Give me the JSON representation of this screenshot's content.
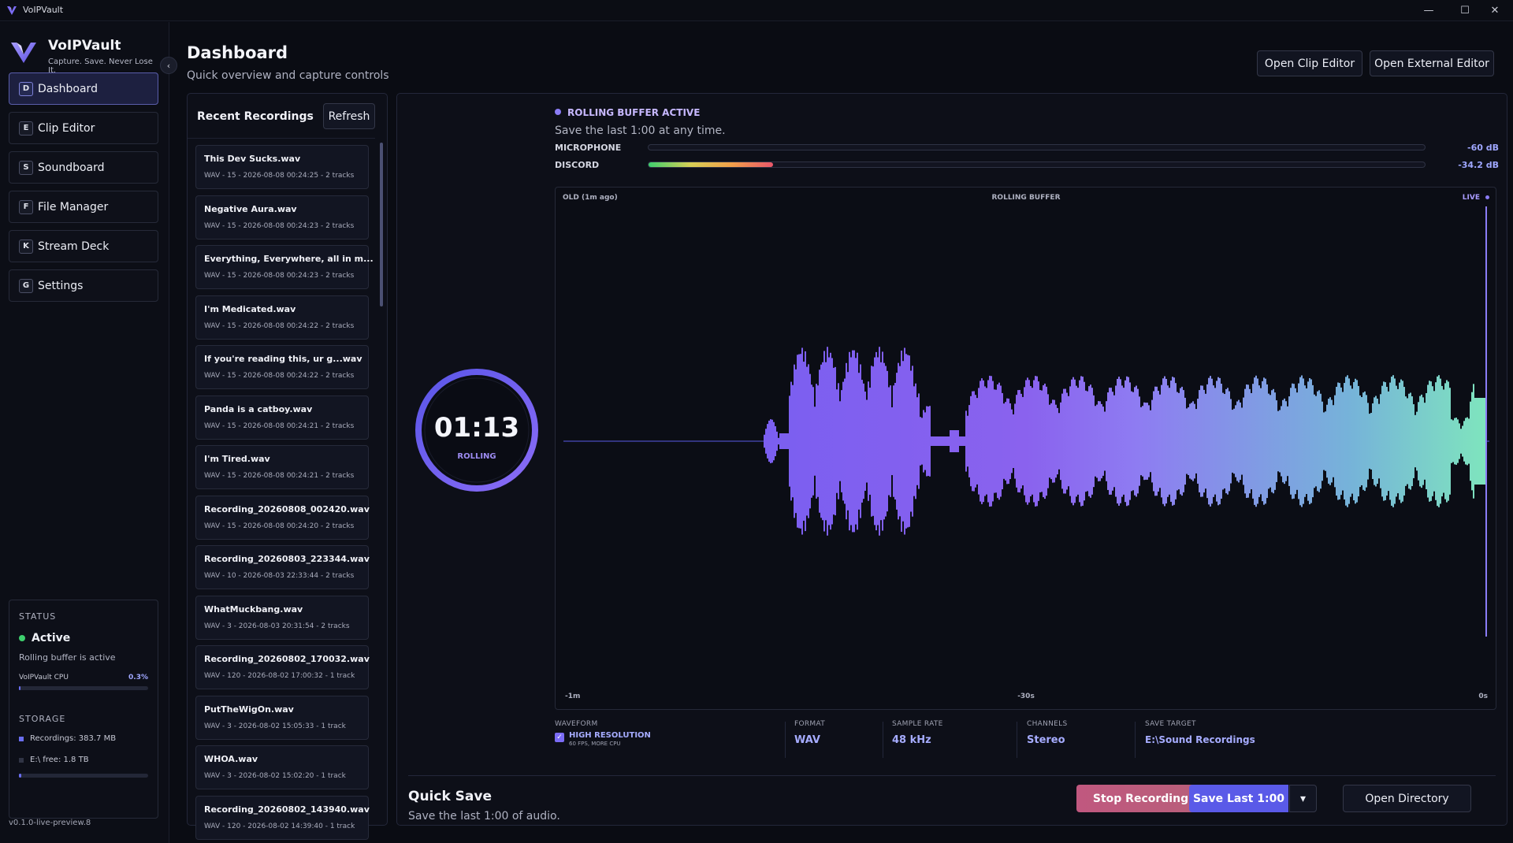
{
  "window": {
    "title": "VoIPVault",
    "minimize_glyph": "—",
    "maximize_glyph": "☐",
    "close_glyph": "✕"
  },
  "brand": {
    "name": "VoIPVault",
    "tagline": "Capture. Save. Never Lose It.",
    "logo_icon": "v-logo-icon",
    "collapse_glyph": "‹"
  },
  "nav": [
    {
      "key": "D",
      "label": "Dashboard",
      "active": true
    },
    {
      "key": "E",
      "label": "Clip Editor",
      "active": false
    },
    {
      "key": "S",
      "label": "Soundboard",
      "active": false
    },
    {
      "key": "F",
      "label": "File Manager",
      "active": false
    },
    {
      "key": "K",
      "label": "Stream Deck",
      "active": false
    },
    {
      "key": "G",
      "label": "Settings",
      "active": false
    }
  ],
  "status": {
    "heading": "STATUS",
    "state": "Active",
    "description": "Rolling buffer is active",
    "cpu_label": "VoIPVault CPU",
    "cpu_value": "0.3%",
    "cpu_fraction": 0.003,
    "storage_heading": "STORAGE",
    "recordings_label": "Recordings: 383.7 MB",
    "free_label": "E:\\ free: 1.8 TB",
    "storage_fraction": 0.02,
    "active_color": "#3ecf6e"
  },
  "version": "v0.1.0-live-preview.8",
  "header": {
    "title": "Dashboard",
    "subtitle": "Quick overview and capture controls",
    "open_clip_editor": "Open Clip Editor",
    "open_external_editor": "Open External Editor"
  },
  "recent": {
    "title": "Recent Recordings",
    "refresh_label": "Refresh",
    "items": [
      {
        "name": "This Dev Sucks.wav",
        "meta": "WAV - 15 - 2026-08-08 00:24:25 - 2 tracks"
      },
      {
        "name": "Negative Aura.wav",
        "meta": "WAV - 15 - 2026-08-08 00:24:23 - 2 tracks"
      },
      {
        "name": "Everything, Everywhere, all in m...",
        "meta": "WAV - 15 - 2026-08-08 00:24:23 - 2 tracks"
      },
      {
        "name": "I'm Medicated.wav",
        "meta": "WAV - 15 - 2026-08-08 00:24:22 - 2 tracks"
      },
      {
        "name": "If you're reading this, ur g...wav",
        "meta": "WAV - 15 - 2026-08-08 00:24:22 - 2 tracks"
      },
      {
        "name": "Panda is a catboy.wav",
        "meta": "WAV - 15 - 2026-08-08 00:24:21 - 2 tracks"
      },
      {
        "name": "I'm Tired.wav",
        "meta": "WAV - 15 - 2026-08-08 00:24:21 - 2 tracks"
      },
      {
        "name": "Recording_20260808_002420.wav",
        "meta": "WAV - 15 - 2026-08-08 00:24:20 - 2 tracks"
      },
      {
        "name": "Recording_20260803_223344.wav",
        "meta": "WAV - 10 - 2026-08-03 22:33:44 - 2 tracks"
      },
      {
        "name": "WhatMuckbang.wav",
        "meta": "WAV - 3 - 2026-08-03 20:31:54 - 2 tracks"
      },
      {
        "name": "Recording_20260802_170032.wav",
        "meta": "WAV - 120 - 2026-08-02 17:00:32 - 1 track"
      },
      {
        "name": "PutTheWigOn.wav",
        "meta": "WAV - 3 - 2026-08-02 15:05:33 - 1 track"
      },
      {
        "name": "WHOA.wav",
        "meta": "WAV - 3 - 2026-08-02 15:02:20 - 1 track"
      },
      {
        "name": "Recording_20260802_143940.wav",
        "meta": "WAV - 120 - 2026-08-02 14:39:40 - 1 track"
      }
    ]
  },
  "capture": {
    "timer": "01:13",
    "timer_state": "ROLLING",
    "buffer_status": "ROLLING BUFFER ACTIVE",
    "buffer_sub": "Save the last 1:00 at any time.",
    "meters": [
      {
        "label": "MICROPHONE",
        "db": "-60 dB",
        "level": 0.0
      },
      {
        "label": "DISCORD",
        "db": "-34.2 dB",
        "level": 0.16
      }
    ],
    "waveform": {
      "left_label": "OLD (1m ago)",
      "center_label": "ROLLING BUFFER",
      "right_label": "LIVE",
      "axis_left": "-1m",
      "axis_center": "-30s",
      "axis_right": "0s"
    },
    "settings": {
      "waveform_heading": "WAVEFORM",
      "waveform_option": "HIGH RESOLUTION",
      "waveform_note": "60 FPS, MORE CPU",
      "waveform_checked": true,
      "format_heading": "FORMAT",
      "format_value": "WAV",
      "rate_heading": "SAMPLE RATE",
      "rate_value": "48 kHz",
      "channels_heading": "CHANNELS",
      "channels_value": "Stereo",
      "target_heading": "SAVE TARGET",
      "target_value": "E:\\Sound Recordings"
    },
    "quick_save": {
      "title": "Quick Save",
      "subtitle": "Save the last 1:00 of audio.",
      "stop_label": "Stop Recording",
      "save_label": "Save Last 1:00",
      "dropdown_glyph": "▾",
      "open_dir_label": "Open Directory"
    }
  },
  "colors": {
    "accent": "#7b6cf6",
    "accent_teal": "#7fe0c0",
    "stop_button": "#c05a78",
    "save_button": "#5a5ae8"
  }
}
